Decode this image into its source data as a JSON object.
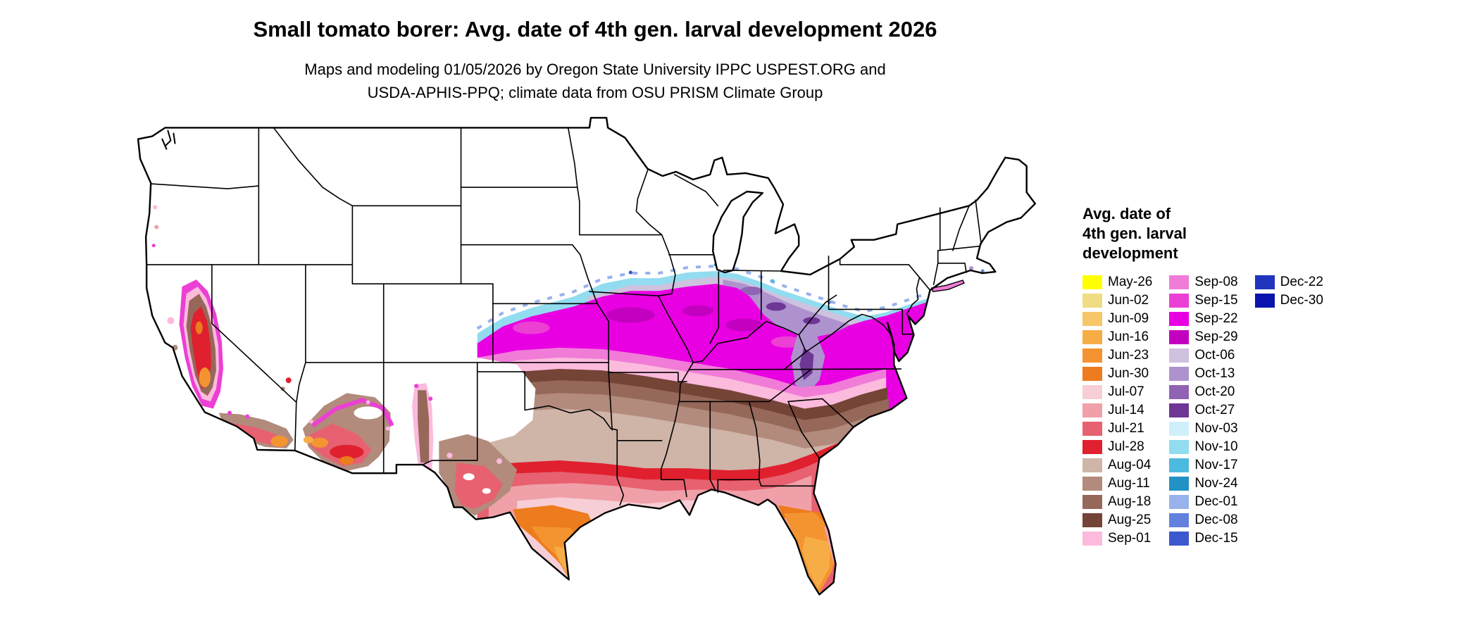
{
  "title": "Small tomato borer: Avg. date of 4th gen. larval development 2026",
  "subtitle_line1": "Maps and modeling 01/05/2026 by Oregon State University IPPC USPEST.ORG and",
  "subtitle_line2": "USDA-APHIS-PPQ; climate data from OSU PRISM Climate Group",
  "legend": {
    "title_lines": [
      "Avg. date of",
      "4th gen. larval",
      "development"
    ],
    "columns": [
      [
        {
          "label": "May-26",
          "color": "#FFFF00"
        },
        {
          "label": "Jun-02",
          "color": "#F0DC82"
        },
        {
          "label": "Jun-09",
          "color": "#F7C669"
        },
        {
          "label": "Jun-16",
          "color": "#F7AD45"
        },
        {
          "label": "Jun-23",
          "color": "#F49430"
        },
        {
          "label": "Jun-30",
          "color": "#ED7C1E"
        },
        {
          "label": "Jul-07",
          "color": "#F7CED6"
        },
        {
          "label": "Jul-14",
          "color": "#F0A0A8"
        },
        {
          "label": "Jul-21",
          "color": "#E76170"
        },
        {
          "label": "Jul-28",
          "color": "#E0202E"
        },
        {
          "label": "Aug-04",
          "color": "#CFB4A8"
        },
        {
          "label": "Aug-11",
          "color": "#B28B7C"
        },
        {
          "label": "Aug-18",
          "color": "#96685A"
        },
        {
          "label": "Aug-25",
          "color": "#744437"
        },
        {
          "label": "Sep-01",
          "color": "#FCBADC"
        }
      ],
      [
        {
          "label": "Sep-08",
          "color": "#F07CD8"
        },
        {
          "label": "Sep-15",
          "color": "#EC3FD4"
        },
        {
          "label": "Sep-22",
          "color": "#E900E2"
        },
        {
          "label": "Sep-29",
          "color": "#C400C0"
        },
        {
          "label": "Oct-06",
          "color": "#CEC2DE"
        },
        {
          "label": "Oct-13",
          "color": "#AE92CE"
        },
        {
          "label": "Oct-20",
          "color": "#9063B4"
        },
        {
          "label": "Oct-27",
          "color": "#6E3695"
        },
        {
          "label": "Nov-03",
          "color": "#CFF0FA"
        },
        {
          "label": "Nov-10",
          "color": "#92DCF0"
        },
        {
          "label": "Nov-17",
          "color": "#4EB9DE"
        },
        {
          "label": "Nov-24",
          "color": "#2292C4"
        },
        {
          "label": "Dec-01",
          "color": "#98B2EC"
        },
        {
          "label": "Dec-08",
          "color": "#6380DE"
        },
        {
          "label": "Dec-15",
          "color": "#3C58CE"
        }
      ],
      [
        {
          "label": "Dec-22",
          "color": "#2134BE"
        },
        {
          "label": "Dec-30",
          "color": "#0A13AD"
        }
      ]
    ]
  }
}
